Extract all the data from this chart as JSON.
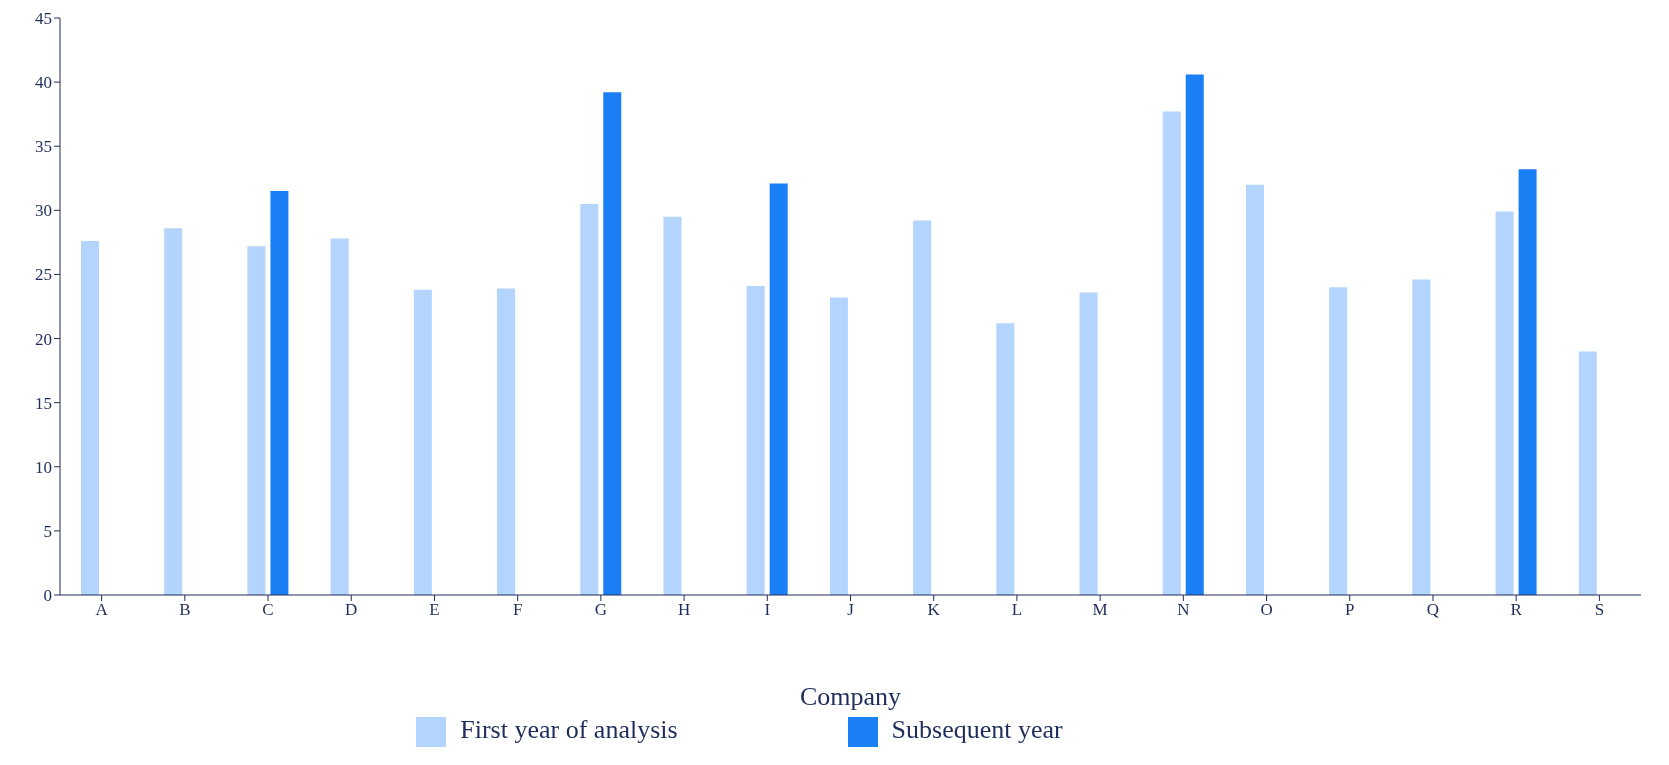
{
  "chart_data": {
    "type": "bar",
    "xlabel": "Company",
    "categories": [
      "A",
      "B",
      "C",
      "D",
      "E",
      "F",
      "G",
      "H",
      "I",
      "J",
      "K",
      "L",
      "M",
      "N",
      "O",
      "P",
      "Q",
      "R",
      "S"
    ],
    "series": [
      {
        "name": "First year of analysis",
        "color": "#b3d4fc",
        "values": [
          27.6,
          28.6,
          27.2,
          27.8,
          23.8,
          23.9,
          30.5,
          29.5,
          24.1,
          23.2,
          29.2,
          21.2,
          23.6,
          37.7,
          32.0,
          24.0,
          24.6,
          29.9,
          19.0
        ]
      },
      {
        "name": "Subsequent year",
        "color": "#1a7ff5",
        "values": [
          null,
          null,
          31.5,
          null,
          null,
          null,
          39.2,
          null,
          32.1,
          null,
          null,
          null,
          null,
          40.6,
          null,
          null,
          null,
          33.2,
          null
        ]
      }
    ],
    "ylim": [
      0,
      45
    ],
    "yticks": [
      0,
      5,
      10,
      15,
      20,
      25,
      30,
      35,
      40,
      45
    ],
    "grid": false,
    "legend": "bottom"
  }
}
